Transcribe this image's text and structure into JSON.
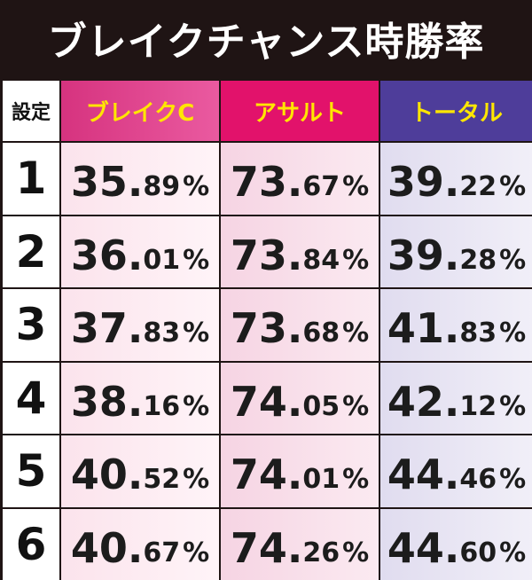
{
  "title": "ブレイクチャンス時勝率",
  "table": {
    "headers": {
      "setting": "設定",
      "break_chance": "ブレイクC",
      "assault": "アサルト",
      "total": "トータル"
    },
    "rows": [
      {
        "setting": "1",
        "break_chance": {
          "int": "35.",
          "dec": "89"
        },
        "assault": {
          "int": "73.",
          "dec": "67"
        },
        "total": {
          "int": "39.",
          "dec": "22"
        }
      },
      {
        "setting": "2",
        "break_chance": {
          "int": "36.",
          "dec": "01"
        },
        "assault": {
          "int": "73.",
          "dec": "84"
        },
        "total": {
          "int": "39.",
          "dec": "28"
        }
      },
      {
        "setting": "3",
        "break_chance": {
          "int": "37.",
          "dec": "83"
        },
        "assault": {
          "int": "73.",
          "dec": "68"
        },
        "total": {
          "int": "41.",
          "dec": "83"
        }
      },
      {
        "setting": "4",
        "break_chance": {
          "int": "38.",
          "dec": "16"
        },
        "assault": {
          "int": "74.",
          "dec": "05"
        },
        "total": {
          "int": "42.",
          "dec": "12"
        }
      },
      {
        "setting": "5",
        "break_chance": {
          "int": "40.",
          "dec": "52"
        },
        "assault": {
          "int": "74.",
          "dec": "01"
        },
        "total": {
          "int": "44.",
          "dec": "46"
        }
      },
      {
        "setting": "6",
        "break_chance": {
          "int": "40.",
          "dec": "67"
        },
        "assault": {
          "int": "74.",
          "dec": "26"
        },
        "total": {
          "int": "44.",
          "dec": "60"
        }
      }
    ],
    "percent_sign": "%"
  },
  "colors": {
    "background": "#1f1414",
    "header_break_chance": "#e0448f",
    "header_assault": "#e2126b",
    "header_total": "#4e3d9a",
    "header_text": "#ffe600"
  }
}
